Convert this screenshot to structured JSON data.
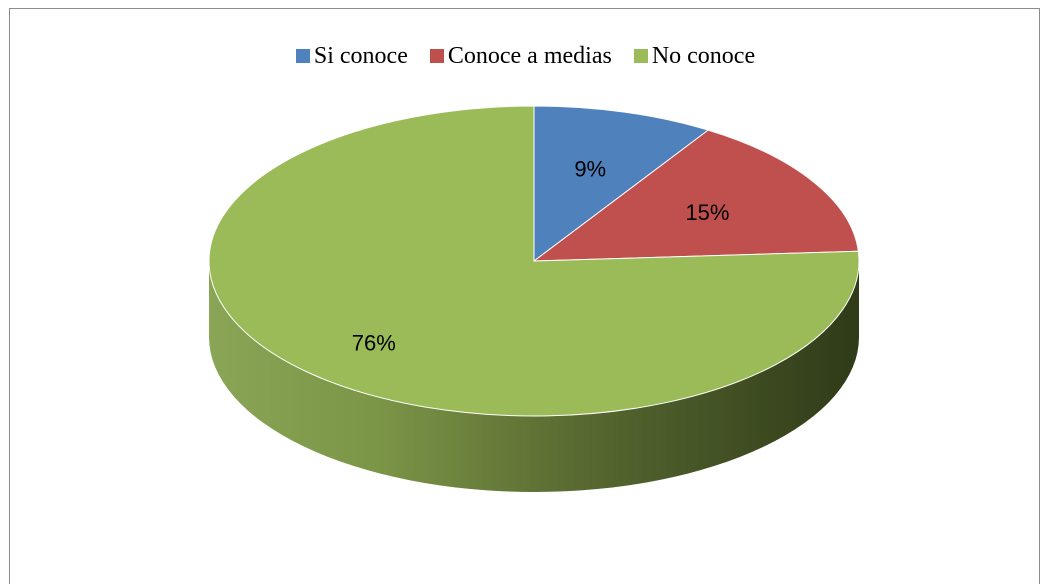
{
  "chart_data": {
    "type": "pie",
    "title": "",
    "categories": [
      "Si conoce",
      "Conoce a medias",
      "No conoce"
    ],
    "values": [
      9,
      15,
      76
    ],
    "labels": [
      "9%",
      "15%",
      "76%"
    ],
    "colors": [
      "#4f81bd",
      "#c0504d",
      "#9bbb59"
    ],
    "legend_position": "top",
    "style": "3d"
  }
}
